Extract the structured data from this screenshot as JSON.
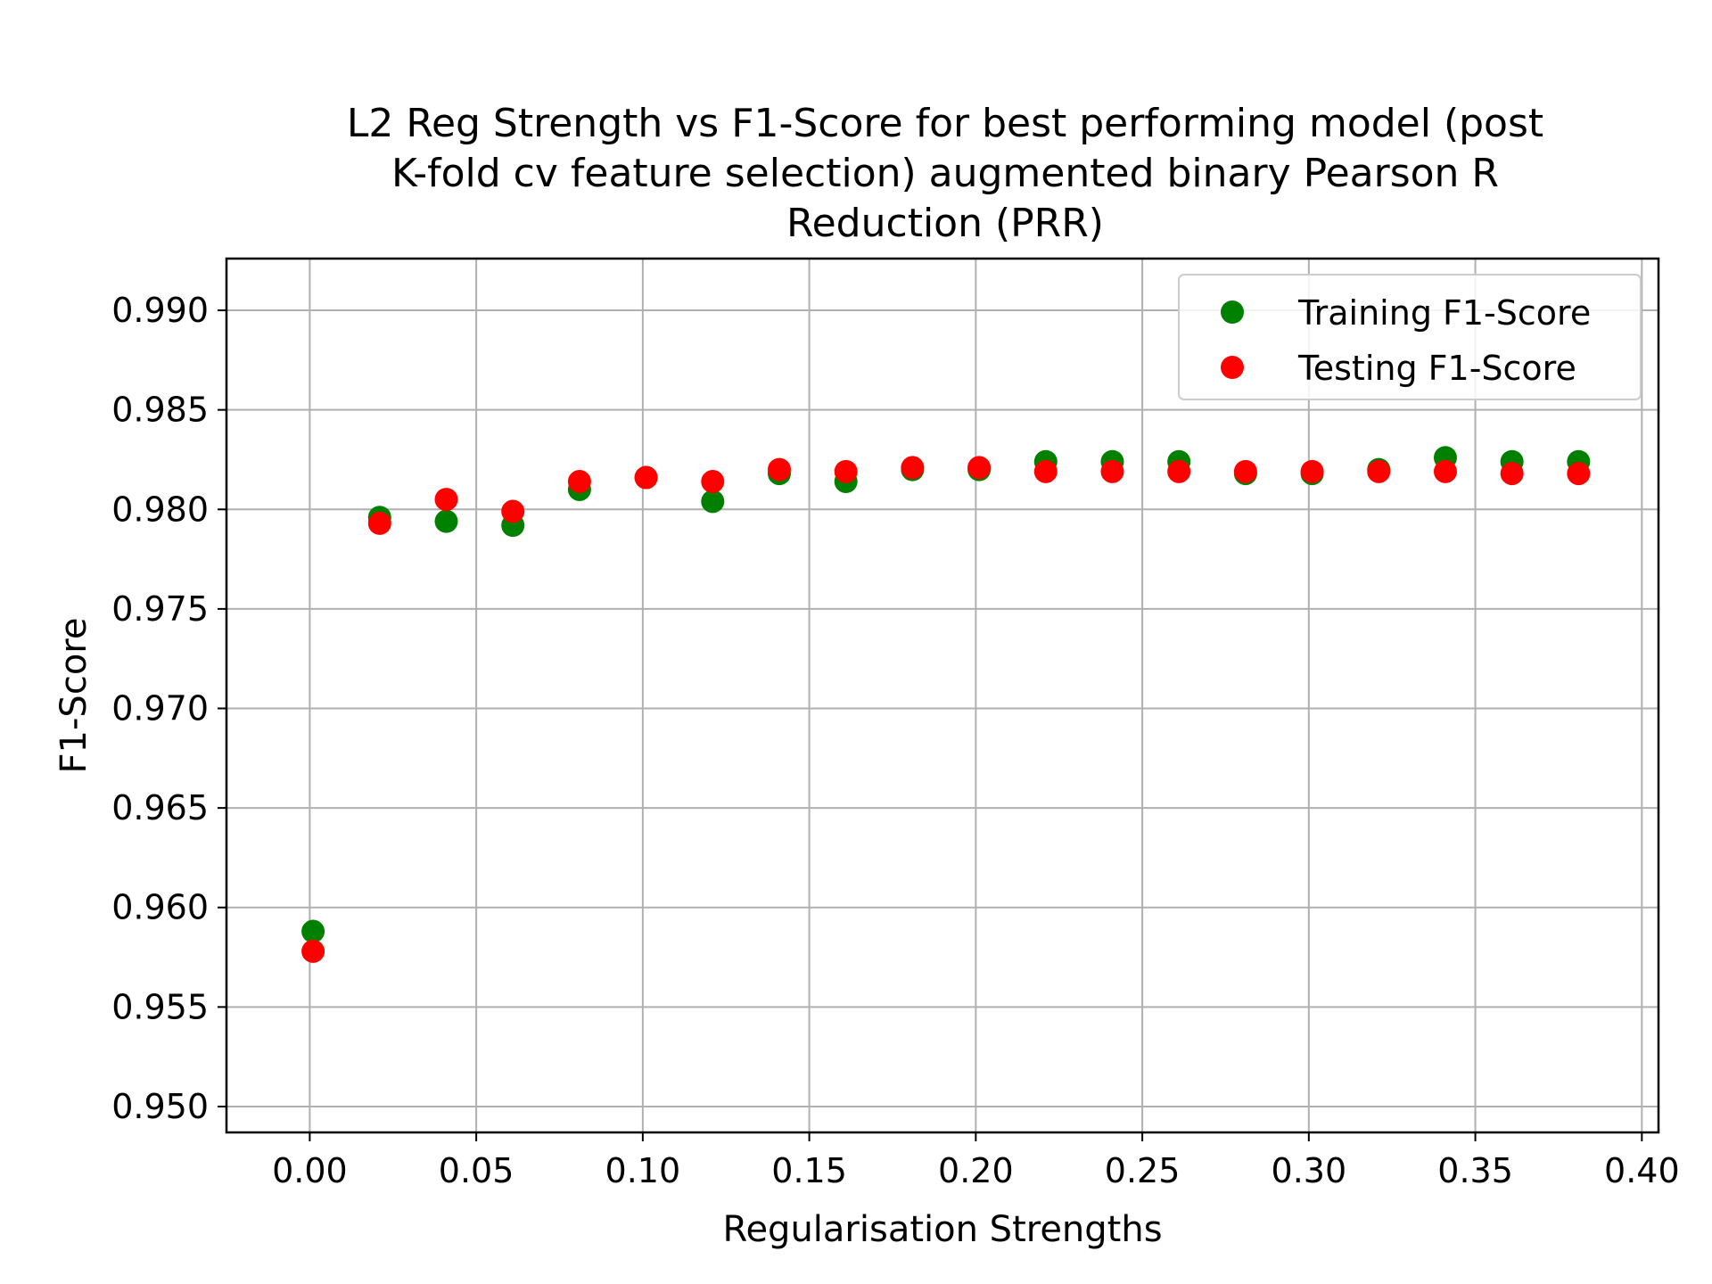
{
  "chart_data": {
    "type": "scatter",
    "title": "L2 Reg Strength vs F1-Score for best performing model (post K-fold cv feature selection) augmented binary Pearson R Reduction (PRR)",
    "title_lines": [
      "L2 Reg Strength vs F1-Score for best performing model (post",
      "K-fold cv feature selection) augmented binary Pearson R",
      "Reduction (PRR)"
    ],
    "xlabel": "Regularisation Strengths",
    "ylabel": "F1-Score",
    "xlim": [
      -0.025,
      0.405
    ],
    "ylim": [
      0.9487,
      0.9926
    ],
    "xticks": [
      0.0,
      0.05,
      0.1,
      0.15,
      0.2,
      0.25,
      0.3,
      0.35,
      0.4
    ],
    "xtick_labels": [
      "0.00",
      "0.05",
      "0.10",
      "0.15",
      "0.20",
      "0.25",
      "0.30",
      "0.35",
      "0.40"
    ],
    "yticks": [
      0.95,
      0.955,
      0.96,
      0.965,
      0.97,
      0.975,
      0.98,
      0.985,
      0.99
    ],
    "ytick_labels": [
      "0.950",
      "0.955",
      "0.960",
      "0.965",
      "0.970",
      "0.975",
      "0.980",
      "0.985",
      "0.990"
    ],
    "grid": true,
    "legend_position": "top-right",
    "x": [
      0.001,
      0.021,
      0.041,
      0.061,
      0.081,
      0.101,
      0.121,
      0.141,
      0.161,
      0.181,
      0.201,
      0.221,
      0.241,
      0.261,
      0.281,
      0.301,
      0.321,
      0.341,
      0.361,
      0.381
    ],
    "series": [
      {
        "name": "Training F1-Score",
        "color": "#008000",
        "values": [
          0.9588,
          0.9796,
          0.9794,
          0.9792,
          0.981,
          0.9816,
          0.9804,
          0.9818,
          0.9814,
          0.982,
          0.982,
          0.9824,
          0.9824,
          0.9824,
          0.9818,
          0.9818,
          0.982,
          0.9826,
          0.9824,
          0.9824
        ]
      },
      {
        "name": "Testing F1-Score",
        "color": "#ff0000",
        "values": [
          0.9578,
          0.9793,
          0.9805,
          0.9799,
          0.9814,
          0.9816,
          0.9814,
          0.982,
          0.9819,
          0.9821,
          0.9821,
          0.9819,
          0.9819,
          0.9819,
          0.9819,
          0.9819,
          0.9819,
          0.9819,
          0.9818,
          0.9818
        ]
      }
    ]
  }
}
